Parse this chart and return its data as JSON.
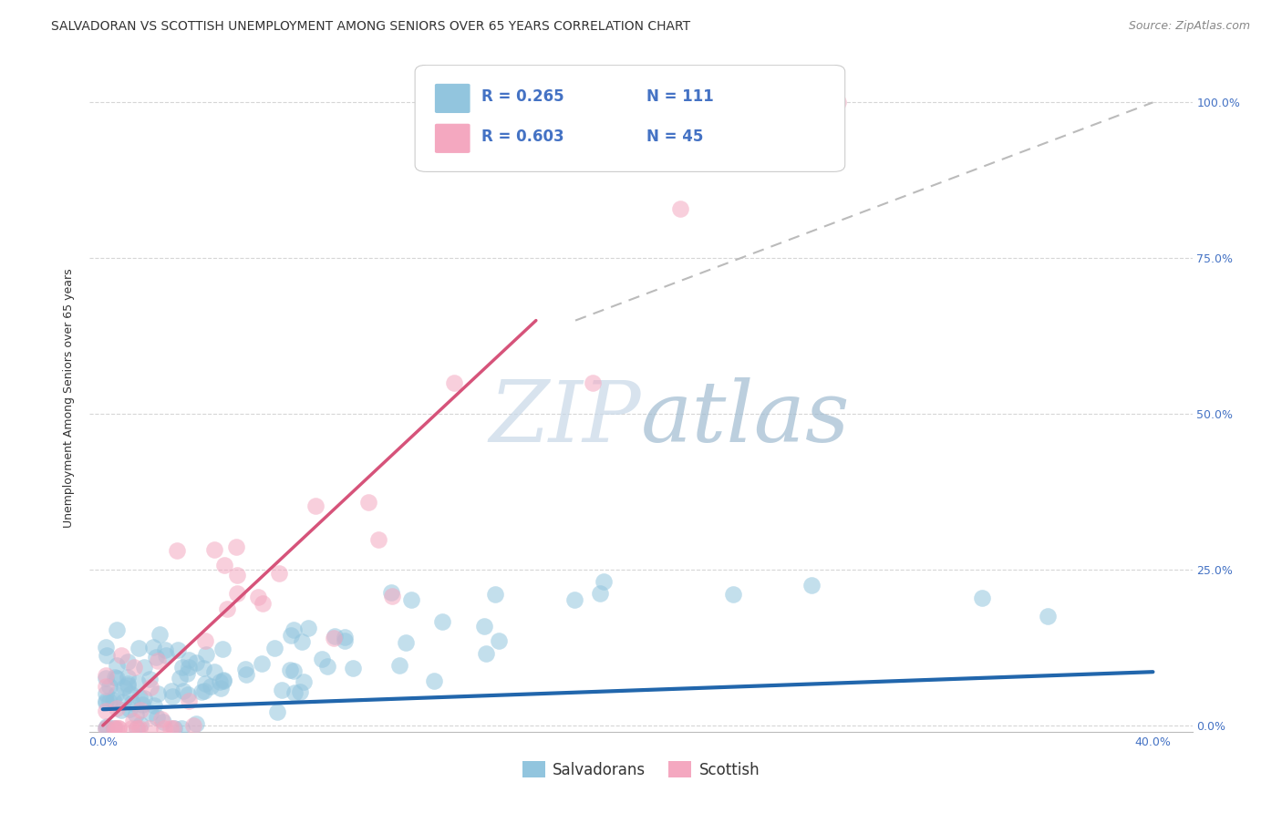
{
  "title": "SALVADORAN VS SCOTTISH UNEMPLOYMENT AMONG SENIORS OVER 65 YEARS CORRELATION CHART",
  "source": "Source: ZipAtlas.com",
  "ylabel": "Unemployment Among Seniors over 65 years",
  "ytick_labels": [
    "0.0%",
    "25.0%",
    "50.0%",
    "75.0%",
    "100.0%"
  ],
  "ytick_values": [
    0.0,
    0.25,
    0.5,
    0.75,
    1.0
  ],
  "xtick_labels": [
    "0.0%",
    "40.0%"
  ],
  "xtick_values": [
    0.0,
    0.4
  ],
  "xlim": [
    -0.005,
    0.415
  ],
  "ylim": [
    -0.01,
    1.06
  ],
  "salvadoran_R": 0.265,
  "salvadoran_N": 111,
  "scottish_R": 0.603,
  "scottish_N": 45,
  "blue_scatter_color": "#92c5de",
  "pink_scatter_color": "#f4a8c0",
  "blue_line_color": "#2166ac",
  "pink_line_color": "#d6537a",
  "diag_line_color": "#bbbbbb",
  "watermark_color": "#c8d8e8",
  "background_color": "#ffffff",
  "legend_blue_label": "Salvadorans",
  "legend_pink_label": "Scottish",
  "blue_line_x": [
    0.0,
    0.4
  ],
  "blue_line_y": [
    0.026,
    0.086
  ],
  "pink_line_x": [
    0.0,
    0.165
  ],
  "pink_line_y": [
    0.0,
    0.65
  ],
  "diag_line_x": [
    0.18,
    0.4
  ],
  "diag_line_y": [
    0.65,
    1.0
  ],
  "title_fontsize": 10,
  "source_fontsize": 9,
  "ylabel_fontsize": 9,
  "tick_fontsize": 9,
  "legend_fontsize": 12,
  "annotation_fontsize": 12
}
